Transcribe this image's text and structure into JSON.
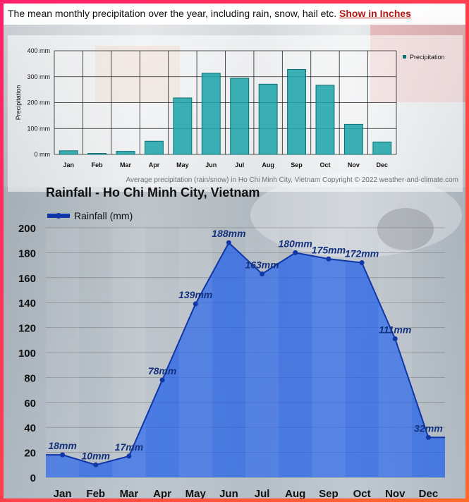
{
  "header": {
    "description": "The mean monthly precipitation over the year, including rain, snow, hail etc.",
    "link_label": "Show in Inches"
  },
  "chart_data": [
    {
      "type": "bar",
      "categories": [
        "Jan",
        "Feb",
        "Mar",
        "Apr",
        "May",
        "Jun",
        "Jul",
        "Aug",
        "Sep",
        "Oct",
        "Nov",
        "Dec"
      ],
      "series": [
        {
          "name": "Precipitation",
          "values": [
            14,
            4,
            12,
            51,
            218,
            313,
            294,
            271,
            328,
            267,
            116,
            48
          ]
        }
      ],
      "ylabel": "Precipitation",
      "ytick_labels": [
        "0 mm",
        "100 mm",
        "200 mm",
        "300 mm",
        "400 mm"
      ],
      "ylim": [
        0,
        400
      ],
      "grid": true,
      "legend": "top-right",
      "color": "#1aa3a8",
      "caption": "Average precipitation (rain/snow) in Ho Chi Minh City, Vietnam   Copyright © 2022  weather-and-climate.com"
    },
    {
      "type": "area",
      "title": "Rainfall - Ho Chi Minh City, Vietnam",
      "categories": [
        "Jan",
        "Feb",
        "Mar",
        "Apr",
        "May",
        "Jun",
        "Jul",
        "Aug",
        "Sep",
        "Oct",
        "Nov",
        "Dec"
      ],
      "series": [
        {
          "name": "Rainfall (mm)",
          "values": [
            18,
            10,
            17,
            78,
            139,
            188,
            163,
            180,
            175,
            172,
            111,
            32
          ]
        }
      ],
      "data_labels": [
        "18mm",
        "10mm",
        "17mm",
        "78mm",
        "139mm",
        "188mm",
        "163mm",
        "180mm",
        "175mm",
        "172mm",
        "111mm",
        "32mm"
      ],
      "yticks": [
        0,
        20,
        40,
        60,
        80,
        100,
        120,
        140,
        160,
        180,
        200
      ],
      "ylim": [
        0,
        200
      ],
      "grid": true,
      "legend": "top-left",
      "color": "#1e5eea"
    }
  ]
}
